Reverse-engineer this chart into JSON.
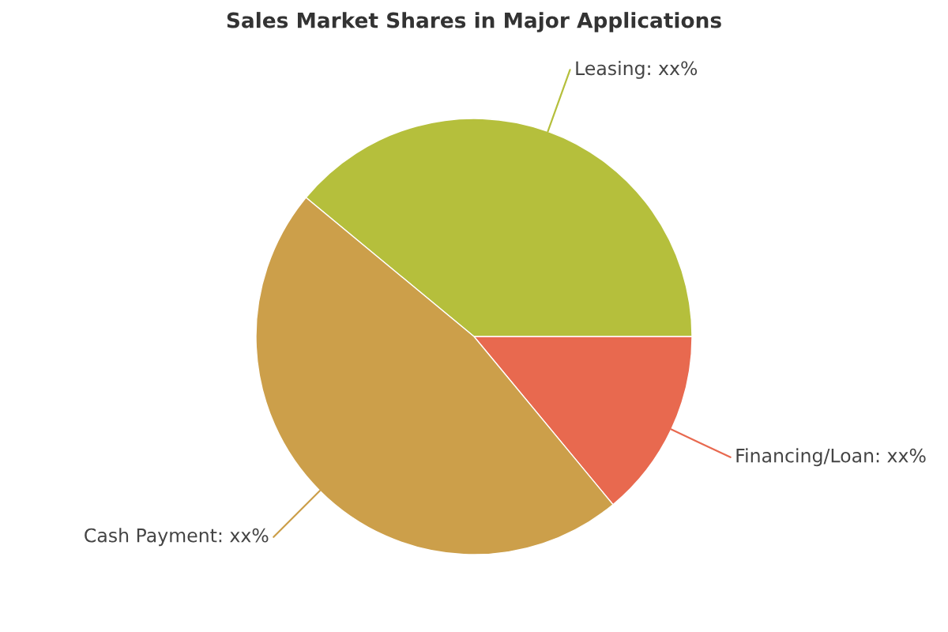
{
  "chart_data": {
    "type": "pie",
    "title": "Sales Market Shares in Major Applications",
    "categories": [
      "Leasing",
      "Financing/Loan",
      "Cash Payment"
    ],
    "values": [
      39,
      14,
      47
    ],
    "value_labels": [
      "xx%",
      "xx%",
      "xx%"
    ],
    "colors": [
      "#b5bf3c",
      "#e8694f",
      "#cc9f4a"
    ]
  }
}
